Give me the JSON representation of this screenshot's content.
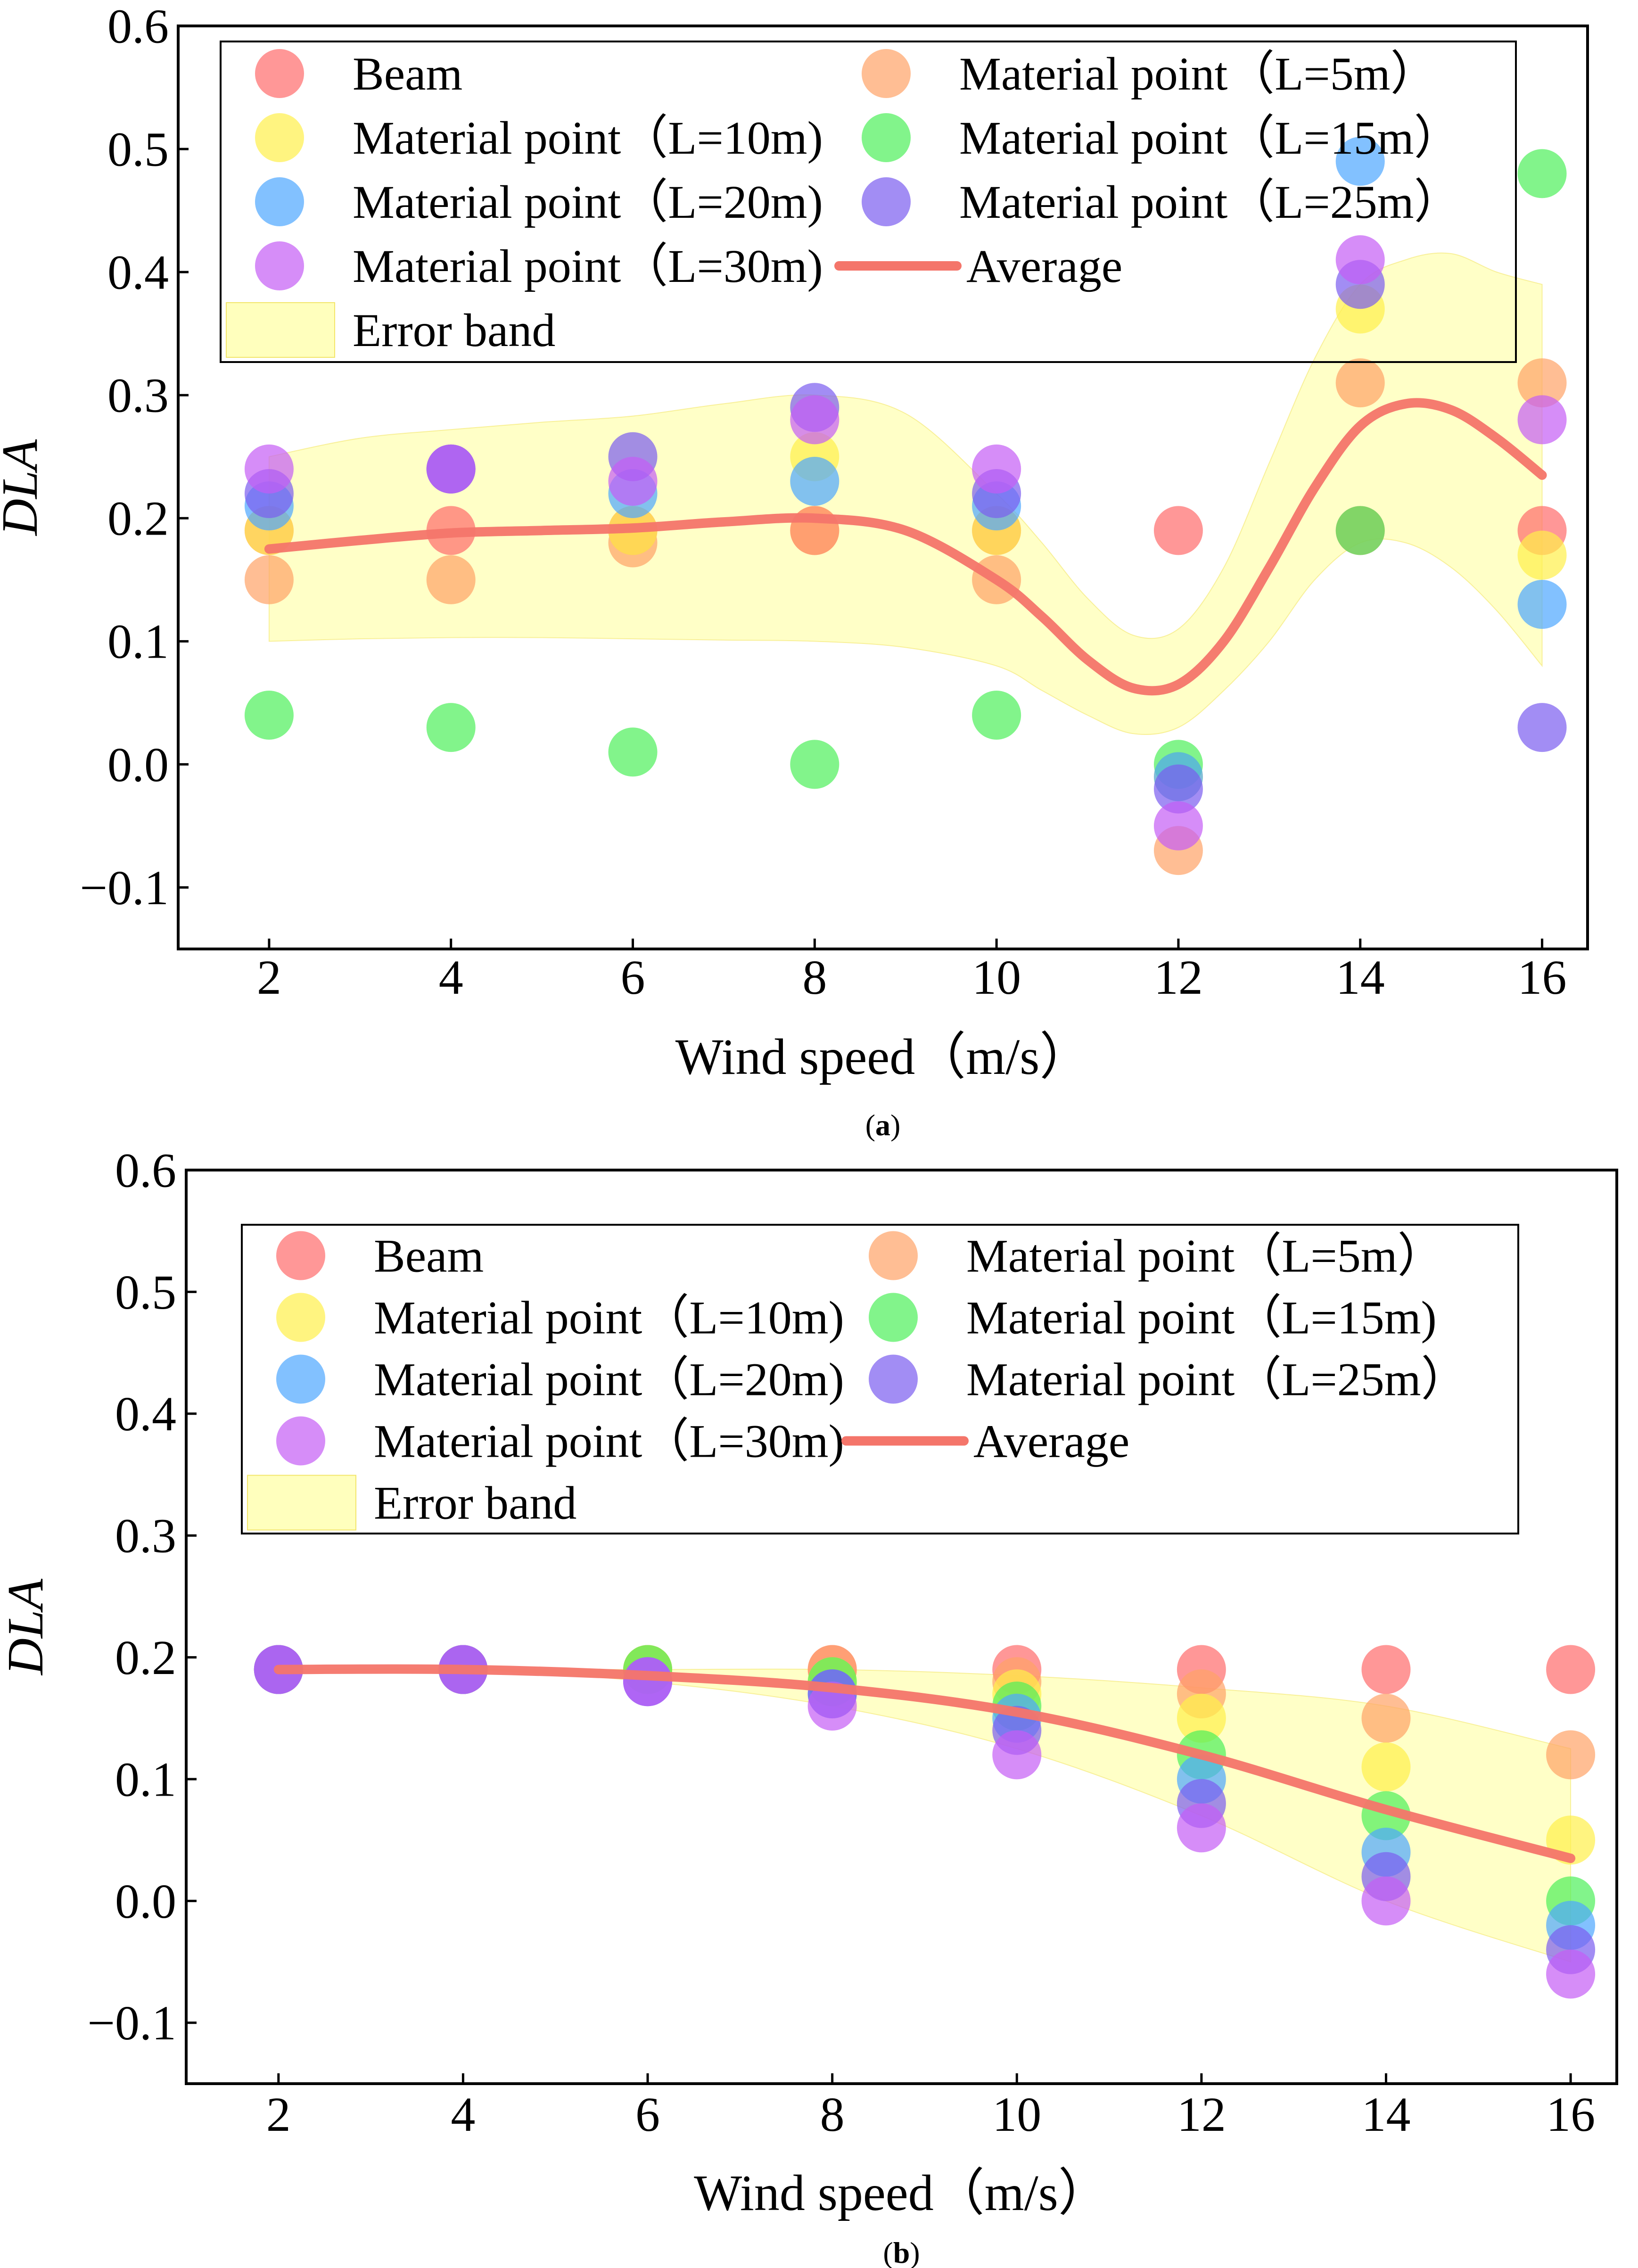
{
  "chart_data": [
    {
      "panel_label": "(a)",
      "panel_letter": "a",
      "type": "scatter",
      "xlabel": "Wind speed（m/s）",
      "ylabel": "DLA",
      "xlim": [
        1,
        16.5
      ],
      "ylim": [
        -0.15,
        0.6
      ],
      "x_ticks": [
        2,
        4,
        6,
        8,
        10,
        12,
        14,
        16
      ],
      "y_ticks": [
        -0.1,
        0.0,
        0.1,
        0.2,
        0.3,
        0.4,
        0.5,
        0.6
      ],
      "y_tick_labels": [
        "−0.1",
        "0.0",
        "0.1",
        "0.2",
        "0.3",
        "0.4",
        "0.5",
        "0.6"
      ],
      "x": [
        2,
        4,
        6,
        8,
        10,
        12,
        14,
        16
      ],
      "series": [
        {
          "name": "Beam",
          "color": "#ff6b6b",
          "values": [
            0.19,
            0.19,
            0.19,
            0.19,
            0.19,
            0.19,
            0.19,
            0.19
          ]
        },
        {
          "name": "Material point（L=5m）",
          "color": "#ffa366",
          "values": [
            0.15,
            0.15,
            0.18,
            0.19,
            0.15,
            -0.07,
            0.31,
            0.31
          ]
        },
        {
          "name": "Material point（L=10m)",
          "color": "#fff04a",
          "values": [
            0.19,
            0.24,
            0.19,
            0.25,
            0.19,
            -0.01,
            0.37,
            0.17
          ]
        },
        {
          "name": "Material point（L=15m）",
          "color": "#4df05a",
          "values": [
            0.04,
            0.03,
            0.01,
            0.0,
            0.04,
            0.0,
            0.19,
            0.48
          ]
        },
        {
          "name": "Material point（L=20m)",
          "color": "#4da6ff",
          "values": [
            0.21,
            0.24,
            0.22,
            0.23,
            0.21,
            -0.01,
            0.49,
            0.13
          ]
        },
        {
          "name": "Material point（L=25m）",
          "color": "#7a5cf0",
          "values": [
            0.22,
            0.24,
            0.25,
            0.29,
            0.22,
            -0.02,
            0.39,
            0.03
          ]
        },
        {
          "name": "Material point（L=30m)",
          "color": "#c45cf5",
          "values": [
            0.24,
            0.24,
            0.23,
            0.28,
            0.24,
            -0.05,
            0.41,
            0.28
          ]
        }
      ],
      "average": {
        "name": "Average",
        "color": "#f4756a",
        "x": [
          2,
          3,
          4,
          5,
          6,
          7,
          8,
          9,
          10,
          10.5,
          11,
          11.5,
          12,
          12.5,
          13,
          13.5,
          14,
          14.5,
          15,
          15.5,
          16
        ],
        "y": [
          0.175,
          0.182,
          0.188,
          0.19,
          0.192,
          0.197,
          0.2,
          0.19,
          0.15,
          0.12,
          0.085,
          0.062,
          0.065,
          0.1,
          0.16,
          0.225,
          0.275,
          0.293,
          0.288,
          0.265,
          0.235
        ]
      },
      "error_band": {
        "name": "Error band",
        "color": "#ffff99",
        "x": [
          2,
          3,
          4,
          5,
          6,
          7,
          8,
          9,
          10,
          10.5,
          11,
          11.5,
          12,
          12.5,
          13,
          13.5,
          14,
          14.5,
          15,
          15.5,
          16
        ],
        "upper": [
          0.25,
          0.265,
          0.272,
          0.278,
          0.283,
          0.293,
          0.3,
          0.285,
          0.22,
          0.18,
          0.135,
          0.105,
          0.11,
          0.16,
          0.245,
          0.33,
          0.39,
          0.41,
          0.415,
          0.4,
          0.39
        ],
        "lower": [
          0.1,
          0.102,
          0.103,
          0.103,
          0.102,
          0.101,
          0.1,
          0.095,
          0.08,
          0.06,
          0.04,
          0.025,
          0.03,
          0.06,
          0.1,
          0.15,
          0.18,
          0.18,
          0.16,
          0.125,
          0.08
        ]
      }
    },
    {
      "panel_label": "(b)",
      "panel_letter": "b",
      "type": "scatter",
      "xlabel": "Wind speed（m/s）",
      "ylabel": "DLA",
      "xlim": [
        1,
        16.5
      ],
      "ylim": [
        -0.15,
        0.6
      ],
      "x_ticks": [
        2,
        4,
        6,
        8,
        10,
        12,
        14,
        16
      ],
      "y_ticks": [
        -0.1,
        0.0,
        0.1,
        0.2,
        0.3,
        0.4,
        0.5,
        0.6
      ],
      "y_tick_labels": [
        "−0.1",
        "0.0",
        "0.1",
        "0.2",
        "0.3",
        "0.4",
        "0.5",
        "0.6"
      ],
      "x": [
        2,
        4,
        6,
        8,
        10,
        12,
        14,
        16
      ],
      "series": [
        {
          "name": "Beam",
          "color": "#ff6b6b",
          "values": [
            0.19,
            0.19,
            0.19,
            0.19,
            0.19,
            0.19,
            0.19,
            0.19
          ]
        },
        {
          "name": "Material point（L=5m）",
          "color": "#ffa366",
          "values": [
            0.19,
            0.19,
            0.19,
            0.19,
            0.18,
            0.17,
            0.15,
            0.12
          ]
        },
        {
          "name": "Material point（L=10m)",
          "color": "#fff04a",
          "values": [
            0.19,
            0.19,
            0.19,
            0.18,
            0.17,
            0.15,
            0.11,
            0.05
          ]
        },
        {
          "name": "Material point（L=15m)",
          "color": "#4df05a",
          "values": [
            0.19,
            0.19,
            0.19,
            0.18,
            0.16,
            0.12,
            0.07,
            0.0
          ]
        },
        {
          "name": "Material point（L=20m)",
          "color": "#4da6ff",
          "values": [
            0.19,
            0.19,
            0.18,
            0.17,
            0.15,
            0.1,
            0.04,
            -0.02
          ]
        },
        {
          "name": "Material point（L=25m）",
          "color": "#7a5cf0",
          "values": [
            0.19,
            0.19,
            0.18,
            0.17,
            0.14,
            0.08,
            0.02,
            -0.04
          ]
        },
        {
          "name": "Material point（L=30m)",
          "color": "#c45cf5",
          "values": [
            0.19,
            0.19,
            0.18,
            0.16,
            0.12,
            0.06,
            0.0,
            -0.06
          ]
        }
      ],
      "average": {
        "name": "Average",
        "color": "#f4756a",
        "x": [
          2,
          4,
          6,
          8,
          10,
          12,
          14,
          16
        ],
        "y": [
          0.19,
          0.19,
          0.185,
          0.175,
          0.155,
          0.12,
          0.075,
          0.035
        ]
      },
      "error_band": {
        "name": "Error band",
        "color": "#ffff99",
        "x": [
          2,
          4,
          6,
          8,
          10,
          12,
          14,
          16
        ],
        "upper": [
          0.19,
          0.19,
          0.19,
          0.19,
          0.185,
          0.175,
          0.16,
          0.125
        ],
        "lower": [
          0.19,
          0.19,
          0.18,
          0.16,
          0.125,
          0.07,
          0.0,
          -0.05
        ]
      }
    }
  ]
}
